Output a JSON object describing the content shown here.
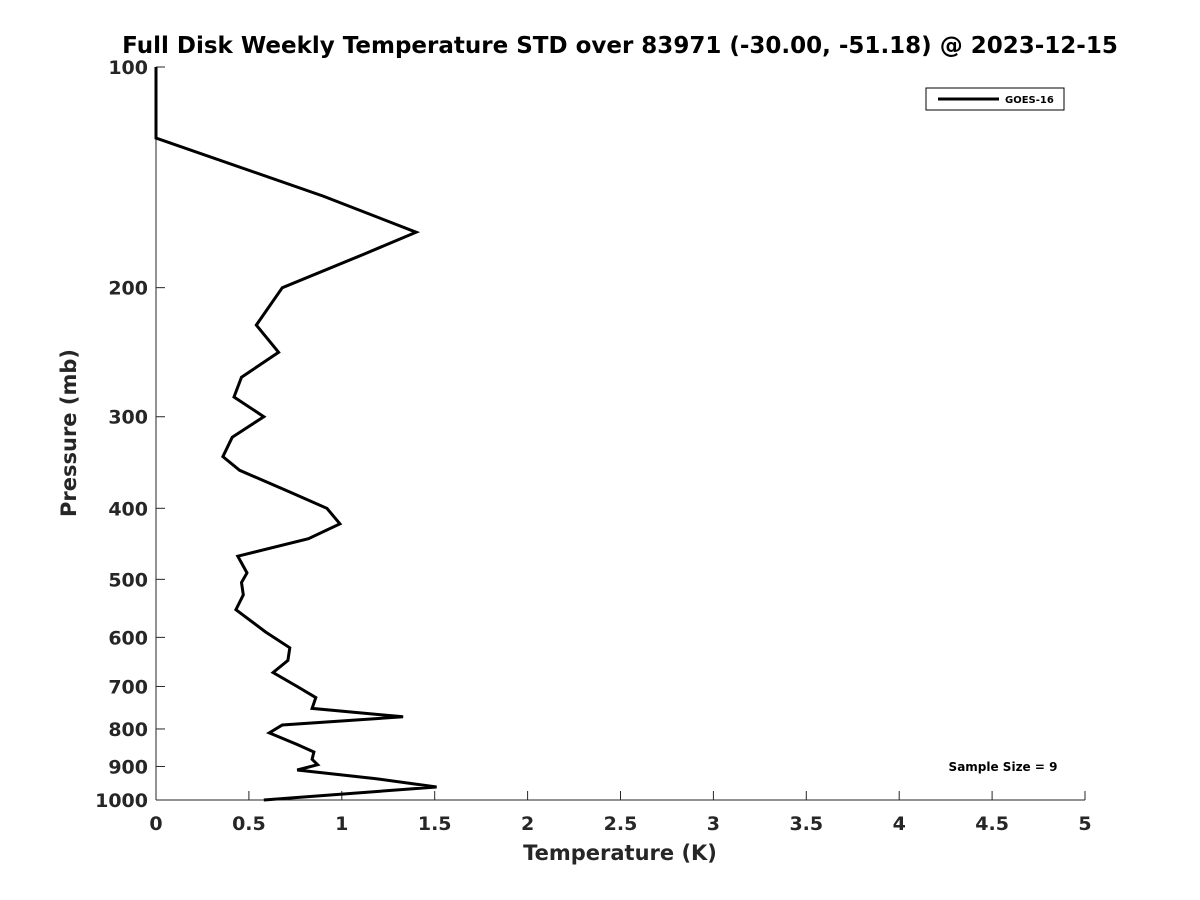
{
  "chart_data": {
    "type": "line",
    "title": "Full Disk Weekly Temperature STD over 83971 (-30.00, -51.18) @ 2023-12-15",
    "xlabel": "Temperature (K)",
    "ylabel": "Pressure (mb)",
    "xlim": [
      0,
      5
    ],
    "ylim": [
      100,
      1000
    ],
    "yscale": "log",
    "yreversed": true,
    "grid": false,
    "legend_position": "top-right",
    "x_ticks": [
      "0",
      "0.5",
      "1",
      "1.5",
      "2",
      "2.5",
      "3",
      "3.5",
      "4",
      "4.5",
      "5"
    ],
    "y_ticks": [
      "100",
      "200",
      "300",
      "400",
      "500",
      "600",
      "700",
      "800",
      "900",
      "1000"
    ],
    "annotation": "Sample Size = 9",
    "series": [
      {
        "name": "GOES-16",
        "color": "#000000",
        "points": [
          [
            0.0,
            100
          ],
          [
            0.0,
            125
          ],
          [
            0.9,
            150
          ],
          [
            1.4,
            168
          ],
          [
            1.12,
            180
          ],
          [
            0.68,
            200
          ],
          [
            0.54,
            225
          ],
          [
            0.66,
            245
          ],
          [
            0.46,
            265
          ],
          [
            0.42,
            282
          ],
          [
            0.58,
            300
          ],
          [
            0.41,
            320
          ],
          [
            0.36,
            340
          ],
          [
            0.45,
            355
          ],
          [
            0.72,
            380
          ],
          [
            0.92,
            400
          ],
          [
            0.99,
            420
          ],
          [
            0.82,
            440
          ],
          [
            0.44,
            465
          ],
          [
            0.49,
            490
          ],
          [
            0.46,
            505
          ],
          [
            0.47,
            525
          ],
          [
            0.43,
            550
          ],
          [
            0.59,
            590
          ],
          [
            0.72,
            620
          ],
          [
            0.71,
            645
          ],
          [
            0.63,
            670
          ],
          [
            0.76,
            700
          ],
          [
            0.86,
            725
          ],
          [
            0.84,
            750
          ],
          [
            1.33,
            770
          ],
          [
            0.68,
            790
          ],
          [
            0.61,
            810
          ],
          [
            0.76,
            840
          ],
          [
            0.85,
            860
          ],
          [
            0.84,
            880
          ],
          [
            0.87,
            895
          ],
          [
            0.76,
            910
          ],
          [
            1.18,
            935
          ],
          [
            1.51,
            960
          ],
          [
            0.92,
            985
          ],
          [
            0.58,
            1000
          ]
        ]
      }
    ]
  }
}
